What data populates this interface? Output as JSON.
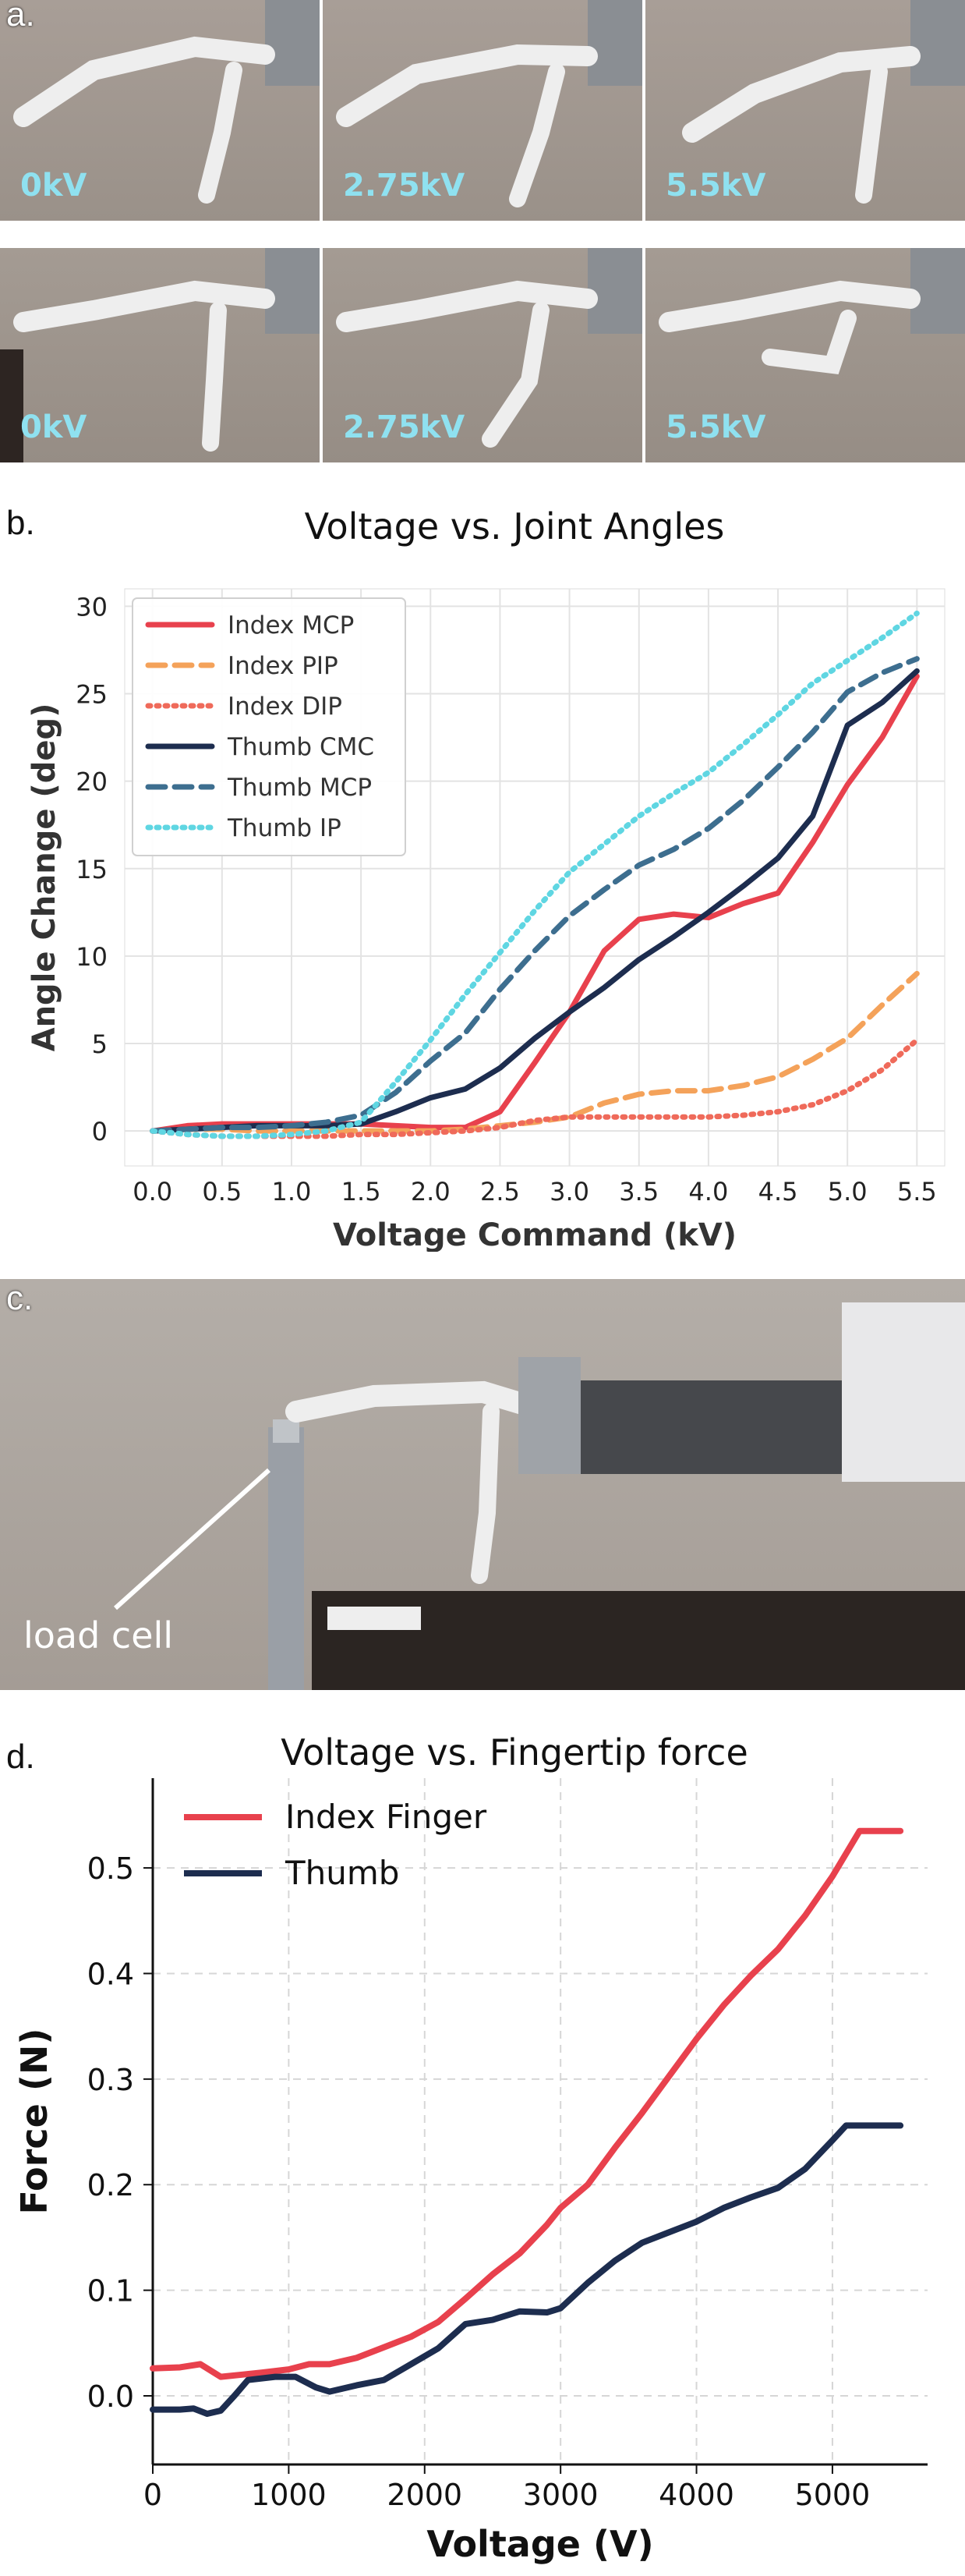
{
  "panels": {
    "a": {
      "letter": "a.",
      "rows": [
        [
          {
            "label": "0kV"
          },
          {
            "label": "2.75kV"
          },
          {
            "label": "5.5kV"
          }
        ],
        [
          {
            "label": "0kV"
          },
          {
            "label": "2.75kV"
          },
          {
            "label": "5.5kV"
          }
        ]
      ]
    },
    "b": {
      "letter": "b.",
      "title": "Voltage vs. Joint Angles"
    },
    "c": {
      "letter": "c.",
      "annotation": "load cell"
    },
    "d": {
      "letter": "d.",
      "title": "Voltage vs. Fingertip force"
    }
  },
  "colors": {
    "red": "#e8414d",
    "orange": "#f4a25a",
    "coral": "#ef6a5a",
    "navy": "#1d2d4f",
    "steel": "#3d6e8f",
    "cyan": "#5fd6e2",
    "photo_wall": "#a79f9a",
    "photo_table": "#2b2522"
  },
  "chart_data": [
    {
      "type": "line",
      "title": "Voltage vs. Joint Angles",
      "xlabel": "Voltage Command (kV)",
      "ylabel": "Angle Change (deg)",
      "xlim": [
        -0.2,
        5.7
      ],
      "ylim": [
        -2,
        31
      ],
      "xticks": [
        0.0,
        0.5,
        1.0,
        1.5,
        2.0,
        2.5,
        3.0,
        3.5,
        4.0,
        4.5,
        5.0,
        5.5
      ],
      "xtick_labels": [
        "0.0",
        "0.5",
        "1.0",
        "1.5",
        "2.0",
        "2.5",
        "3.0",
        "3.5",
        "4.0",
        "4.5",
        "5.0",
        "5.5"
      ],
      "yticks": [
        0,
        5,
        10,
        15,
        20,
        25,
        30
      ],
      "ytick_labels": [
        "0",
        "5",
        "10",
        "15",
        "20",
        "25",
        "30"
      ],
      "grid": true,
      "legend": "top-left",
      "x": [
        0,
        0.25,
        0.5,
        0.75,
        1.0,
        1.25,
        1.5,
        1.75,
        2.0,
        2.25,
        2.5,
        2.75,
        3.0,
        3.25,
        3.5,
        3.75,
        4.0,
        4.25,
        4.5,
        4.75,
        5.0,
        5.25,
        5.5
      ],
      "series": [
        {
          "name": "Index MCP",
          "style": "solid",
          "color": "#e8414d",
          "values": [
            0,
            0.3,
            0.4,
            0.4,
            0.4,
            0.4,
            0.4,
            0.3,
            0.2,
            0.2,
            1.1,
            3.9,
            6.8,
            10.3,
            12.1,
            12.4,
            12.2,
            13.0,
            13.6,
            16.5,
            19.8,
            22.5,
            26.0
          ]
        },
        {
          "name": "Index PIP",
          "style": "dashed",
          "color": "#f4a25a",
          "values": [
            0,
            0.1,
            0.1,
            0,
            0,
            0,
            0,
            0,
            0,
            0.1,
            0.3,
            0.5,
            0.8,
            1.6,
            2.1,
            2.3,
            2.3,
            2.6,
            3.1,
            4.1,
            5.3,
            7.2,
            9.0
          ]
        },
        {
          "name": "Index DIP",
          "style": "dotted",
          "color": "#ef6a5a",
          "values": [
            0,
            -0.2,
            -0.3,
            -0.3,
            -0.3,
            -0.3,
            -0.2,
            -0.2,
            -0.1,
            0,
            0.2,
            0.6,
            0.8,
            0.8,
            0.8,
            0.8,
            0.8,
            0.9,
            1.1,
            1.5,
            2.3,
            3.5,
            5.2
          ]
        },
        {
          "name": "Thumb CMC",
          "style": "solid",
          "color": "#1d2d4f",
          "values": [
            0,
            0.1,
            0.2,
            0.3,
            0.3,
            0.3,
            0.4,
            1.1,
            1.9,
            2.4,
            3.6,
            5.3,
            6.8,
            8.2,
            9.8,
            11.1,
            12.5,
            14.0,
            15.6,
            18.0,
            23.2,
            24.5,
            26.3
          ]
        },
        {
          "name": "Thumb MCP",
          "style": "dashed",
          "color": "#3d6e8f",
          "values": [
            0,
            0.1,
            0.2,
            0.2,
            0.3,
            0.5,
            0.9,
            2.2,
            4.0,
            5.6,
            8.1,
            10.3,
            12.3,
            13.8,
            15.2,
            16.1,
            17.3,
            18.9,
            20.8,
            22.8,
            25.1,
            26.2,
            27.0
          ]
        },
        {
          "name": "Thumb IP",
          "style": "dotted",
          "color": "#5fd6e2",
          "values": [
            0,
            -0.2,
            -0.3,
            -0.3,
            -0.2,
            0,
            0.5,
            2.8,
            5.2,
            7.8,
            10.2,
            12.6,
            14.8,
            16.4,
            18.0,
            19.3,
            20.5,
            22.1,
            23.8,
            25.6,
            26.9,
            28.2,
            29.6
          ]
        }
      ]
    },
    {
      "type": "line",
      "title": "Voltage vs. Fingertip force",
      "xlabel": "Voltage (V)",
      "ylabel": "Force (N)",
      "xlim": [
        0,
        5700
      ],
      "ylim": [
        -0.065,
        0.585
      ],
      "xticks": [
        0,
        1000,
        2000,
        3000,
        4000,
        5000
      ],
      "xtick_labels": [
        "0",
        "1000",
        "2000",
        "3000",
        "4000",
        "5000"
      ],
      "yticks": [
        0.0,
        0.1,
        0.2,
        0.3,
        0.4,
        0.5
      ],
      "ytick_labels": [
        "0.0",
        "0.1",
        "0.2",
        "0.3",
        "0.4",
        "0.5"
      ],
      "grid": true,
      "legend": "top-left",
      "series": [
        {
          "name": "Index Finger",
          "color": "#e8414d",
          "x": [
            0,
            200,
            350,
            500,
            650,
            800,
            1000,
            1150,
            1300,
            1500,
            1700,
            1900,
            2100,
            2300,
            2500,
            2700,
            2900,
            3000,
            3200,
            3400,
            3600,
            3800,
            4000,
            4200,
            4400,
            4600,
            4800,
            5000,
            5200,
            5500
          ],
          "values": [
            0.026,
            0.027,
            0.03,
            0.018,
            0.02,
            0.022,
            0.025,
            0.03,
            0.03,
            0.036,
            0.046,
            0.056,
            0.07,
            0.092,
            0.115,
            0.135,
            0.162,
            0.178,
            0.2,
            0.235,
            0.268,
            0.303,
            0.338,
            0.37,
            0.398,
            0.423,
            0.455,
            0.492,
            0.535,
            0.535
          ]
        },
        {
          "name": "Thumb",
          "color": "#1d2d4f",
          "x": [
            0,
            200,
            300,
            400,
            500,
            600,
            700,
            900,
            1050,
            1200,
            1300,
            1500,
            1700,
            1900,
            2100,
            2300,
            2500,
            2700,
            2900,
            3000,
            3200,
            3400,
            3600,
            3800,
            4000,
            4200,
            4400,
            4600,
            4800,
            5000,
            5100,
            5500
          ],
          "values": [
            -0.013,
            -0.013,
            -0.012,
            -0.017,
            -0.014,
            0.0,
            0.015,
            0.018,
            0.018,
            0.008,
            0.004,
            0.01,
            0.015,
            0.03,
            0.045,
            0.068,
            0.072,
            0.08,
            0.079,
            0.083,
            0.107,
            0.128,
            0.145,
            0.155,
            0.165,
            0.178,
            0.188,
            0.197,
            0.215,
            0.242,
            0.256,
            0.256
          ]
        }
      ]
    }
  ]
}
